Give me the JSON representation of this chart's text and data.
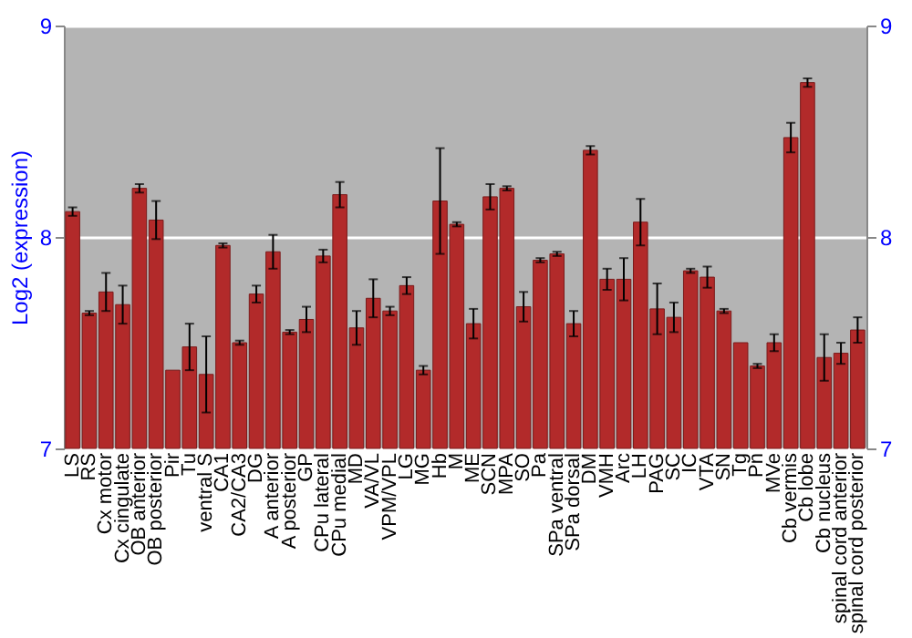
{
  "chart_data": {
    "type": "bar",
    "ylabel": "Log2 (expression)",
    "categories": [
      "LS",
      "RS",
      "Cx motor",
      "Cx cingulate",
      "OB anterior",
      "OB posterior",
      "Pir",
      "Tu",
      "ventral S",
      "CA1",
      "CA2/CA3",
      "DG",
      "A anterior",
      "A posterior",
      "GP",
      "CPu lateral",
      "CPu medial",
      "MD",
      "VA/VL",
      "VPM/VPL",
      "LG",
      "MG",
      "Hb",
      "M",
      "ME",
      "SCN",
      "MPA",
      "SO",
      "Pa",
      "SPa ventral",
      "SPa dorsal",
      "DM",
      "VMH",
      "Arc",
      "LH",
      "PAG",
      "SC",
      "IC",
      "VTA",
      "SN",
      "Tg",
      "Pn",
      "MVe",
      "Cb vermis",
      "Cb lobe",
      "Cb nucleus",
      "spinal cord anterior",
      "spinal cord posterior"
    ],
    "values": [
      8.12,
      7.64,
      7.74,
      7.68,
      8.23,
      8.08,
      7.37,
      7.48,
      7.35,
      7.96,
      7.5,
      7.73,
      7.93,
      7.55,
      7.61,
      7.91,
      8.2,
      7.57,
      7.71,
      7.65,
      7.77,
      7.37,
      8.17,
      8.06,
      7.59,
      8.19,
      8.23,
      7.67,
      7.89,
      7.92,
      7.59,
      8.41,
      7.8,
      7.8,
      8.07,
      7.66,
      7.62,
      7.84,
      7.81,
      7.65,
      7.5,
      7.39,
      7.5,
      8.47,
      8.73,
      7.43,
      7.45,
      7.56
    ],
    "errors": [
      0.02,
      0.01,
      0.09,
      0.09,
      0.02,
      0.09,
      null,
      0.11,
      0.18,
      0.01,
      0.01,
      0.04,
      0.08,
      0.01,
      0.06,
      0.03,
      0.06,
      0.08,
      0.09,
      0.02,
      0.04,
      0.02,
      0.25,
      0.01,
      0.07,
      0.06,
      0.01,
      0.07,
      0.01,
      0.01,
      0.06,
      0.02,
      0.05,
      0.1,
      0.11,
      0.12,
      0.07,
      0.01,
      0.05,
      0.01,
      null,
      0.01,
      0.04,
      0.07,
      0.02,
      0.11,
      0.05,
      0.06
    ],
    "color": "#b22a2a",
    "ylim": [
      7,
      9
    ],
    "yticks": [
      7,
      8,
      9
    ],
    "y2lim": [
      7,
      9
    ],
    "y2ticks": [
      7,
      8,
      9
    ],
    "grid": "y"
  }
}
